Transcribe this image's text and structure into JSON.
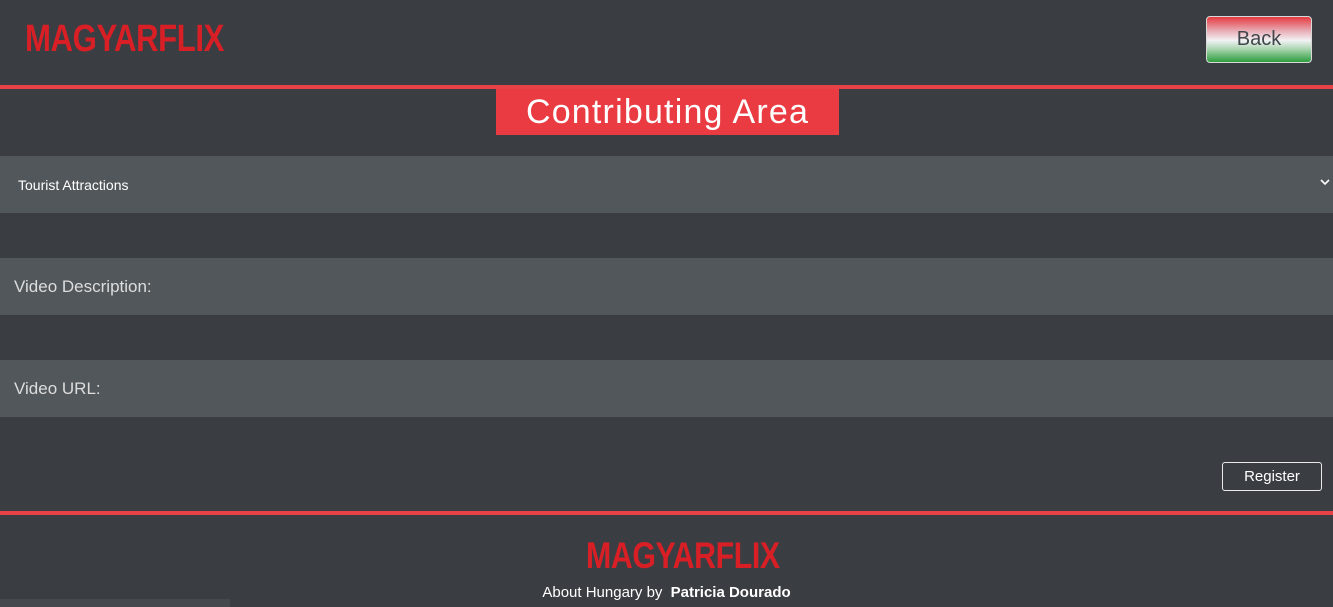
{
  "header": {
    "logo_text": "MAGYARFLIX",
    "back_label": "Back"
  },
  "page_title": "Contributing Area",
  "form": {
    "category_select": {
      "selected": "Tourist Attractions"
    },
    "video_description": {
      "placeholder": "Video Description:"
    },
    "video_url": {
      "placeholder": "Video URL:"
    },
    "register_label": "Register"
  },
  "footer": {
    "logo_text": "MAGYARFLIX",
    "credit_prefix": "About Hungary by",
    "credit_author": "Patricia Dourado"
  },
  "icons": {
    "dropdown": "chevron-down-icon"
  },
  "colors": {
    "background": "#3a3e42",
    "accent": "#e84148",
    "logo": "#d81f26",
    "field": "#52575b"
  }
}
